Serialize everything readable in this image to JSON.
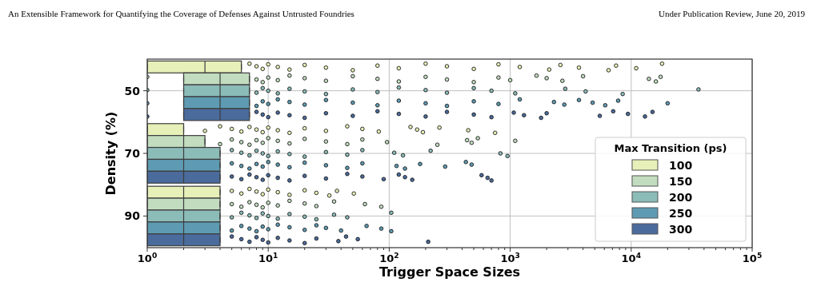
{
  "chart_data": {
    "type": "box",
    "orientation": "horizontal",
    "title": "An Extensible Framework for Quantifying the Coverage of Defenses Against Untrusted Foundries",
    "annotations": [
      "Under Publication Review, June 20, 2019"
    ],
    "xlabel": "Trigger Space Sizes",
    "ylabel": "Density (%)",
    "legend_title": "Max Transition (ps)",
    "categories": [
      "50",
      "70",
      "90"
    ],
    "xlim": [
      1,
      100000
    ],
    "log": "x",
    "grid": true,
    "legend": "bottom right",
    "xticks": [
      {
        "value": 1,
        "label": "10$^{0}$"
      },
      {
        "value": 2,
        "label": null
      },
      {
        "value": 3,
        "label": null
      },
      {
        "value": 4,
        "label": null
      },
      {
        "value": 5,
        "label": null
      },
      {
        "value": 6,
        "label": null
      },
      {
        "value": 7,
        "label": null
      },
      {
        "value": 8,
        "label": null
      },
      {
        "value": 9,
        "label": null
      },
      {
        "value": 10,
        "label": "10$^{1}$"
      },
      {
        "value": 20,
        "label": null
      },
      {
        "value": 30,
        "label": null
      },
      {
        "value": 40,
        "label": null
      },
      {
        "value": 50,
        "label": null
      },
      {
        "value": 60,
        "label": null
      },
      {
        "value": 70,
        "label": null
      },
      {
        "value": 80,
        "label": null
      },
      {
        "value": 90,
        "label": null
      },
      {
        "value": 100,
        "label": "10$^{2}$"
      },
      {
        "value": 200,
        "label": null
      },
      {
        "value": 300,
        "label": null
      },
      {
        "value": 400,
        "label": null
      },
      {
        "value": 500,
        "label": null
      },
      {
        "value": 600,
        "label": null
      },
      {
        "value": 700,
        "label": null
      },
      {
        "value": 800,
        "label": null
      },
      {
        "value": 900,
        "label": null
      },
      {
        "value": 1000,
        "label": "10$^{3}$"
      },
      {
        "value": 2000,
        "label": null
      },
      {
        "value": 3000,
        "label": null
      },
      {
        "value": 4000,
        "label": null
      },
      {
        "value": 5000,
        "label": null
      },
      {
        "value": 6000,
        "label": null
      },
      {
        "value": 7000,
        "label": null
      },
      {
        "value": 8000,
        "label": null
      },
      {
        "value": 9000,
        "label": null
      },
      {
        "value": 10000,
        "label": "10$^{4}$"
      },
      {
        "value": 20000,
        "label": null
      },
      {
        "value": 30000,
        "label": null
      },
      {
        "value": 40000,
        "label": null
      },
      {
        "value": 50000,
        "label": null
      },
      {
        "value": 60000,
        "label": null
      },
      {
        "value": 70000,
        "label": null
      },
      {
        "value": 80000,
        "label": null
      },
      {
        "value": 90000,
        "label": null
      },
      {
        "value": 100000,
        "label": "10$^{5}$"
      }
    ],
    "series": [
      {
        "name": "100",
        "color": "#e6f0b8",
        "boxes": [
          {
            "low": 1,
            "q1": 1,
            "median": 3,
            "q3": 6,
            "high": 6,
            "outliers": [
              7,
              8,
              9,
              10,
              12,
              15,
              20,
              30,
              50,
              80,
              120,
              200,
              300,
              500,
              800,
              1200,
              2100,
              2600,
              3700,
              6500,
              7500,
              11000,
              18000
            ]
          },
          {
            "low": 1,
            "q1": 1,
            "median": 1,
            "q3": 2,
            "high": 2,
            "outliers": [
              3,
              4,
              5,
              6,
              7,
              8,
              9,
              10,
              12,
              15,
              20,
              30,
              45,
              60,
              82,
              150,
              170,
              190,
              260,
              450,
              750
            ]
          },
          {
            "low": 1,
            "q1": 1,
            "median": 2,
            "q3": 4,
            "high": 4,
            "outliers": [
              5,
              6,
              7,
              8,
              9,
              10,
              12,
              15,
              20,
              25,
              32,
              37,
              51
            ]
          }
        ]
      },
      {
        "name": "150",
        "color": "#c2dcbf",
        "boxes": [
          {
            "low": 2,
            "q1": 2,
            "median": 4,
            "q3": 7,
            "high": 7,
            "outliers": [
              1,
              8,
              9,
              10,
              12,
              15,
              20,
              30,
              50,
              80,
              120,
              200,
              300,
              500,
              800,
              1000,
              1650,
              2000,
              2700,
              4000,
              14000,
              16000,
              17500
            ]
          },
          {
            "low": 1,
            "q1": 1,
            "median": 2,
            "q3": 3,
            "high": 3,
            "outliers": [
              4,
              5,
              6,
              7,
              8,
              9,
              10,
              12,
              15,
              20,
              30,
              45,
              60,
              96,
              250,
              440,
              480,
              540,
              1100
            ]
          },
          {
            "low": 1,
            "q1": 1,
            "median": 2,
            "q3": 4,
            "high": 4,
            "outliers": [
              5,
              6,
              7,
              8,
              9,
              10,
              12,
              15,
              20,
              25,
              35,
              63,
              86
            ]
          }
        ]
      },
      {
        "name": "200",
        "color": "#8bbcb8",
        "boxes": [
          {
            "low": 2,
            "q1": 2,
            "median": 4,
            "q3": 7,
            "high": 7,
            "outliers": [
              1,
              8,
              9,
              10,
              12,
              15,
              20,
              30,
              50,
              80,
              120,
              200,
              300,
              500,
              700,
              1100,
              2850,
              4200,
              8500,
              36000
            ]
          },
          {
            "low": 1,
            "q1": 1,
            "median": 2,
            "q3": 4,
            "high": 4,
            "outliers": [
              5,
              6,
              7,
              8,
              9,
              10,
              12,
              15,
              20,
              30,
              45,
              60,
              110,
              130,
              220,
              830,
              950
            ]
          },
          {
            "low": 1,
            "q1": 1,
            "median": 2,
            "q3": 4,
            "high": 4,
            "outliers": [
              5,
              6,
              7,
              8,
              9,
              10,
              12,
              15,
              20,
              25,
              35,
              45,
              104
            ]
          }
        ]
      },
      {
        "name": "250",
        "color": "#5e9bb3",
        "boxes": [
          {
            "low": 2,
            "q1": 2,
            "median": 4,
            "q3": 7,
            "high": 7,
            "outliers": [
              1,
              8,
              9,
              10,
              12,
              15,
              20,
              30,
              50,
              80,
              120,
              200,
              300,
              500,
              800,
              1200,
              2300,
              2800,
              3700,
              4800,
              6100,
              7800,
              20000
            ]
          },
          {
            "low": 1,
            "q1": 1,
            "median": 2,
            "q3": 4,
            "high": 4,
            "outliers": [
              5,
              6,
              7,
              8,
              9,
              10,
              12,
              15,
              20,
              30,
              45,
              60,
              115,
              135,
              180,
              290,
              430,
              480
            ]
          },
          {
            "low": 1,
            "q1": 1,
            "median": 2,
            "q3": 4,
            "high": 4,
            "outliers": [
              5,
              6,
              7,
              8,
              9,
              10,
              12,
              15,
              20,
              25,
              30,
              40,
              65,
              86,
              104
            ]
          }
        ]
      },
      {
        "name": "300",
        "color": "#4a6b9c",
        "boxes": [
          {
            "low": 2,
            "q1": 2,
            "median": 4,
            "q3": 7,
            "high": 7,
            "outliers": [
              1,
              8,
              9,
              10,
              12,
              15,
              20,
              30,
              50,
              80,
              120,
              200,
              300,
              500,
              700,
              1070,
              1300,
              1800,
              2000,
              5500,
              7100,
              9400,
              13000,
              15000
            ]
          },
          {
            "low": 1,
            "q1": 1,
            "median": 2,
            "q3": 4,
            "high": 4,
            "outliers": [
              5,
              6,
              7,
              8,
              9,
              10,
              12,
              15,
              20,
              30,
              45,
              60,
              90,
              120,
              135,
              155,
              580,
              650,
              700
            ]
          },
          {
            "low": 1,
            "q1": 1,
            "median": 2,
            "q3": 4,
            "high": 4,
            "outliers": [
              5,
              6,
              7,
              8,
              9,
              10,
              12,
              15,
              20,
              25,
              38,
              44,
              55,
              210
            ]
          }
        ]
      }
    ]
  }
}
